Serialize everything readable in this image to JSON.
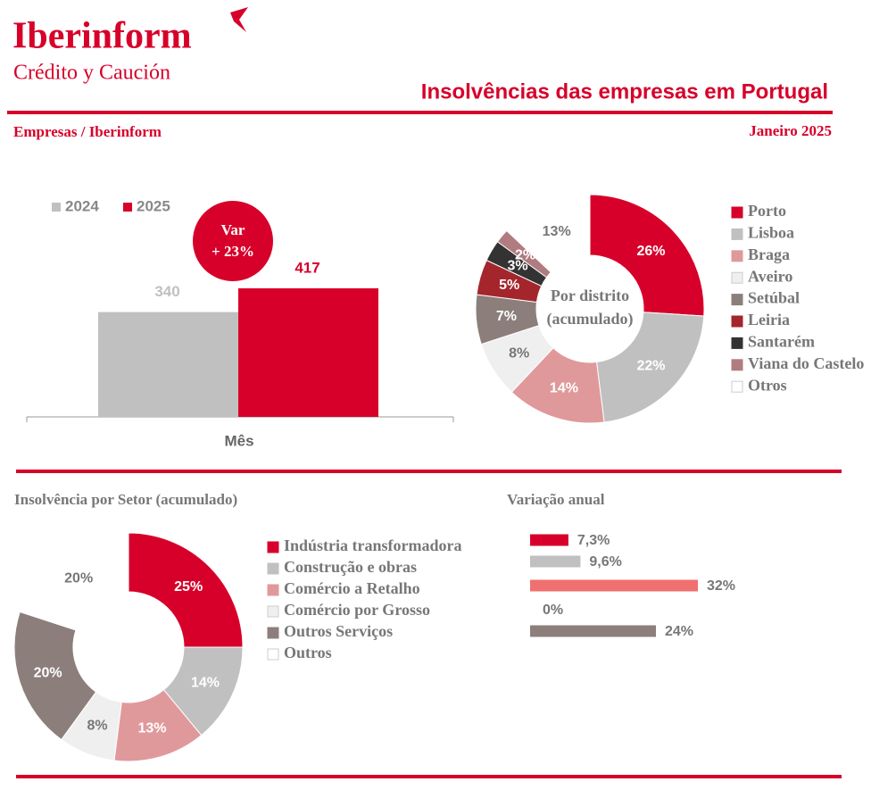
{
  "header": {
    "brand": "Iberinform",
    "brand_sub": "Crédito y Caución",
    "title": "Insolvências das empresas em Portugal",
    "section": "Empresas / Iberinform",
    "period": "Janeiro 2025"
  },
  "chart_data": [
    {
      "type": "bar",
      "orientation": "vertical",
      "x_label": "Mês",
      "categories": [
        null
      ],
      "series": [
        {
          "name": "2024",
          "color": "#c0c0c0",
          "values": [
            340
          ]
        },
        {
          "name": "2025",
          "color": "#d7002a",
          "values": [
            417
          ]
        }
      ],
      "annotation": [
        "Var",
        "+ 23%"
      ]
    },
    {
      "type": "pie",
      "donut": true,
      "center_label": [
        "Por distrito",
        "(acumulado)"
      ],
      "categories": [
        "Porto",
        "Lisboa",
        "Braga",
        "Aveiro",
        "Setúbal",
        "Leiria",
        "Santarém",
        "Viana do Castelo",
        "Otros"
      ],
      "values": [
        26,
        22,
        14,
        8,
        7,
        5,
        3,
        2,
        13
      ],
      "value_labels": [
        "26%",
        "22%",
        "14%",
        "8%",
        "7%",
        "5%",
        "3%",
        "2%",
        "13%"
      ],
      "colors": [
        "#d7002a",
        "#c0c0c0",
        "#e0999b",
        "#efefef",
        "#8c7f7b",
        "#a4262c",
        "#333333",
        "#b07c80",
        "#ffffff"
      ]
    },
    {
      "type": "pie",
      "donut": true,
      "title": "Insolvência por Setor (acumulado)",
      "categories": [
        "Indústria transformadora",
        "Construção e obras",
        "Comércio a Retalho",
        "Comércio por Grosso",
        "Outros Serviços",
        "Outros"
      ],
      "values": [
        25,
        14,
        13,
        8,
        20,
        20
      ],
      "value_labels": [
        "25%",
        "14%",
        "13%",
        "8%",
        "20%",
        "20%"
      ],
      "colors": [
        "#d7002a",
        "#c0c0c0",
        "#e0999b",
        "#efefef",
        "#8c7f7b",
        "#ffffff"
      ]
    },
    {
      "type": "bar",
      "orientation": "horizontal",
      "title": "Variação anual",
      "categories": [
        null,
        null,
        null,
        null,
        null
      ],
      "values": [
        7.3,
        9.6,
        32,
        0,
        24
      ],
      "value_labels": [
        "7,3%",
        "9,6%",
        "32%",
        "0%",
        "24%"
      ],
      "colors": [
        "#d7002a",
        "#c0c0c0",
        "#f07070",
        "#efefef",
        "#8c7f7b"
      ]
    }
  ]
}
